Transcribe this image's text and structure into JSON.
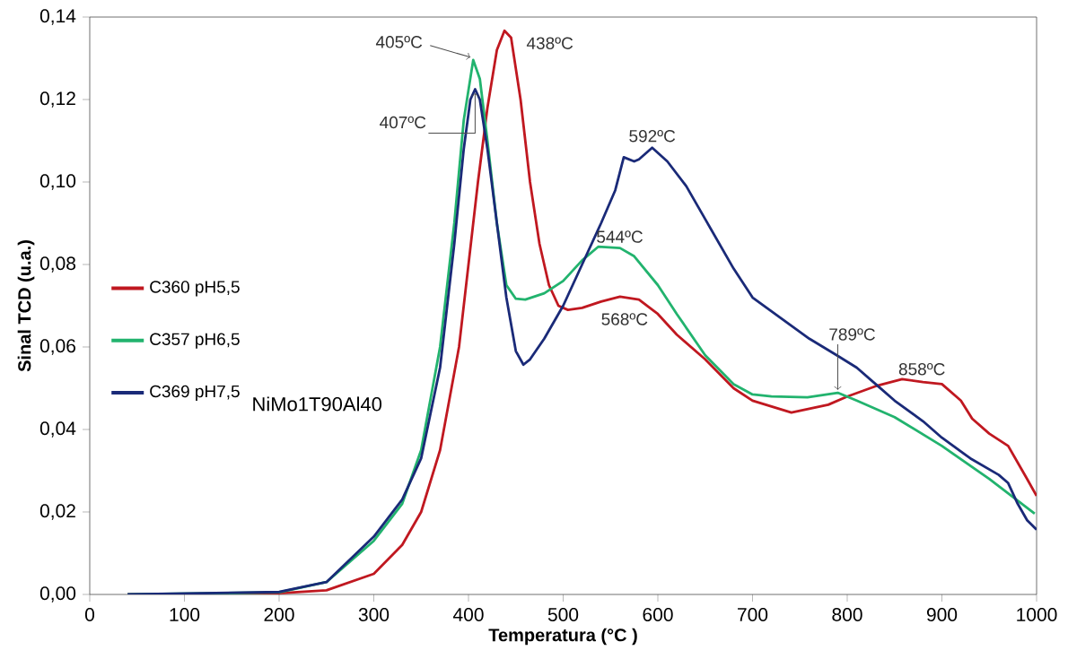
{
  "chart_data": {
    "type": "line",
    "xlabel": "Temperatura (°C )",
    "ylabel": "Sinal TCD (u.a.)",
    "xlim": [
      0,
      1000
    ],
    "xticks": [
      0,
      100,
      200,
      300,
      400,
      500,
      600,
      700,
      800,
      900,
      1000
    ],
    "ylim": [
      0,
      0.14
    ],
    "yticks": [
      {
        "value": 0,
        "label": "0,00"
      },
      {
        "value": 0.02,
        "label": "0,02"
      },
      {
        "value": 0.04,
        "label": "0,04"
      },
      {
        "value": 0.06,
        "label": "0,06"
      },
      {
        "value": 0.08,
        "label": "0,08"
      },
      {
        "value": 0.1,
        "label": "0,10"
      },
      {
        "value": 0.12,
        "label": "0,12"
      },
      {
        "value": 0.14,
        "label": "0,14"
      }
    ],
    "grid": false,
    "legend": "left",
    "marker": "none",
    "line_style": "solid",
    "series": [
      {
        "name": "C360 pH5,5",
        "color": "#c01820",
        "x": [
          40,
          200,
          250,
          300,
          330,
          350,
          370,
          390,
          410,
          420,
          430,
          438,
          445,
          455,
          465,
          475,
          485,
          495,
          505,
          520,
          540,
          560,
          580,
          600,
          620,
          650,
          680,
          700,
          741,
          780,
          800,
          830,
          858,
          880,
          900,
          920,
          932,
          950,
          970,
          990,
          1000
        ],
        "values": [
          0,
          0.0003,
          0.001,
          0.005,
          0.012,
          0.02,
          0.035,
          0.06,
          0.1,
          0.118,
          0.132,
          0.1367,
          0.135,
          0.12,
          0.1,
          0.085,
          0.075,
          0.07,
          0.069,
          0.0695,
          0.071,
          0.0722,
          0.0715,
          0.068,
          0.063,
          0.057,
          0.05,
          0.047,
          0.0441,
          0.046,
          0.048,
          0.0505,
          0.0522,
          0.0515,
          0.051,
          0.047,
          0.0426,
          0.039,
          0.036,
          0.028,
          0.0239
        ]
      },
      {
        "name": "C357 pH6,5",
        "color": "#22b36e",
        "x": [
          40,
          200,
          250,
          300,
          330,
          350,
          370,
          385,
          395,
          405,
          412,
          420,
          430,
          440,
          450,
          460,
          480,
          500,
          520,
          537,
          560,
          575,
          600,
          620,
          650,
          680,
          700,
          720,
          758,
          790,
          810,
          850,
          900,
          950,
          998
        ],
        "values": [
          0,
          0.0005,
          0.003,
          0.013,
          0.022,
          0.035,
          0.06,
          0.09,
          0.115,
          0.1296,
          0.125,
          0.11,
          0.09,
          0.075,
          0.0717,
          0.0715,
          0.073,
          0.076,
          0.081,
          0.0843,
          0.084,
          0.082,
          0.075,
          0.068,
          0.058,
          0.051,
          0.0485,
          0.048,
          0.0478,
          0.0489,
          0.047,
          0.043,
          0.036,
          0.028,
          0.0196
        ]
      },
      {
        "name": "C369 pH7,5",
        "color": "#1a2a78",
        "x": [
          40,
          200,
          250,
          300,
          330,
          350,
          370,
          385,
          395,
          402,
          407,
          412,
          420,
          430,
          440,
          450,
          458,
          465,
          480,
          500,
          520,
          540,
          555,
          564,
          575,
          580,
          594,
          610,
          630,
          650,
          680,
          700,
          730,
          760,
          789,
          810,
          830,
          850,
          880,
          900,
          930,
          960,
          970,
          980,
          990,
          1000
        ],
        "values": [
          0,
          0.0006,
          0.003,
          0.014,
          0.023,
          0.033,
          0.055,
          0.085,
          0.108,
          0.12,
          0.1225,
          0.12,
          0.108,
          0.09,
          0.072,
          0.059,
          0.0557,
          0.057,
          0.062,
          0.07,
          0.08,
          0.09,
          0.098,
          0.106,
          0.105,
          0.1055,
          0.1083,
          0.105,
          0.099,
          0.091,
          0.079,
          0.072,
          0.067,
          0.062,
          0.058,
          0.055,
          0.051,
          0.047,
          0.042,
          0.038,
          0.033,
          0.029,
          0.027,
          0.022,
          0.018,
          0.0157
        ]
      }
    ],
    "annotations": [
      {
        "text": "405ºC",
        "x": 405,
        "y": 0.1296
      },
      {
        "text": "407ºC",
        "x": 407,
        "y": 0.1225
      },
      {
        "text": "438ºC",
        "x": 438,
        "y": 0.1367
      },
      {
        "text": "592ºC",
        "x": 594,
        "y": 0.1083
      },
      {
        "text": "544ºC",
        "x": 537,
        "y": 0.0843
      },
      {
        "text": "568ºC",
        "x": 561,
        "y": 0.0722
      },
      {
        "text": "789ºC",
        "x": 790,
        "y": 0.0489
      },
      {
        "text": "858ºC",
        "x": 858,
        "y": 0.0522
      },
      "NiMo1T90Al40"
    ]
  }
}
